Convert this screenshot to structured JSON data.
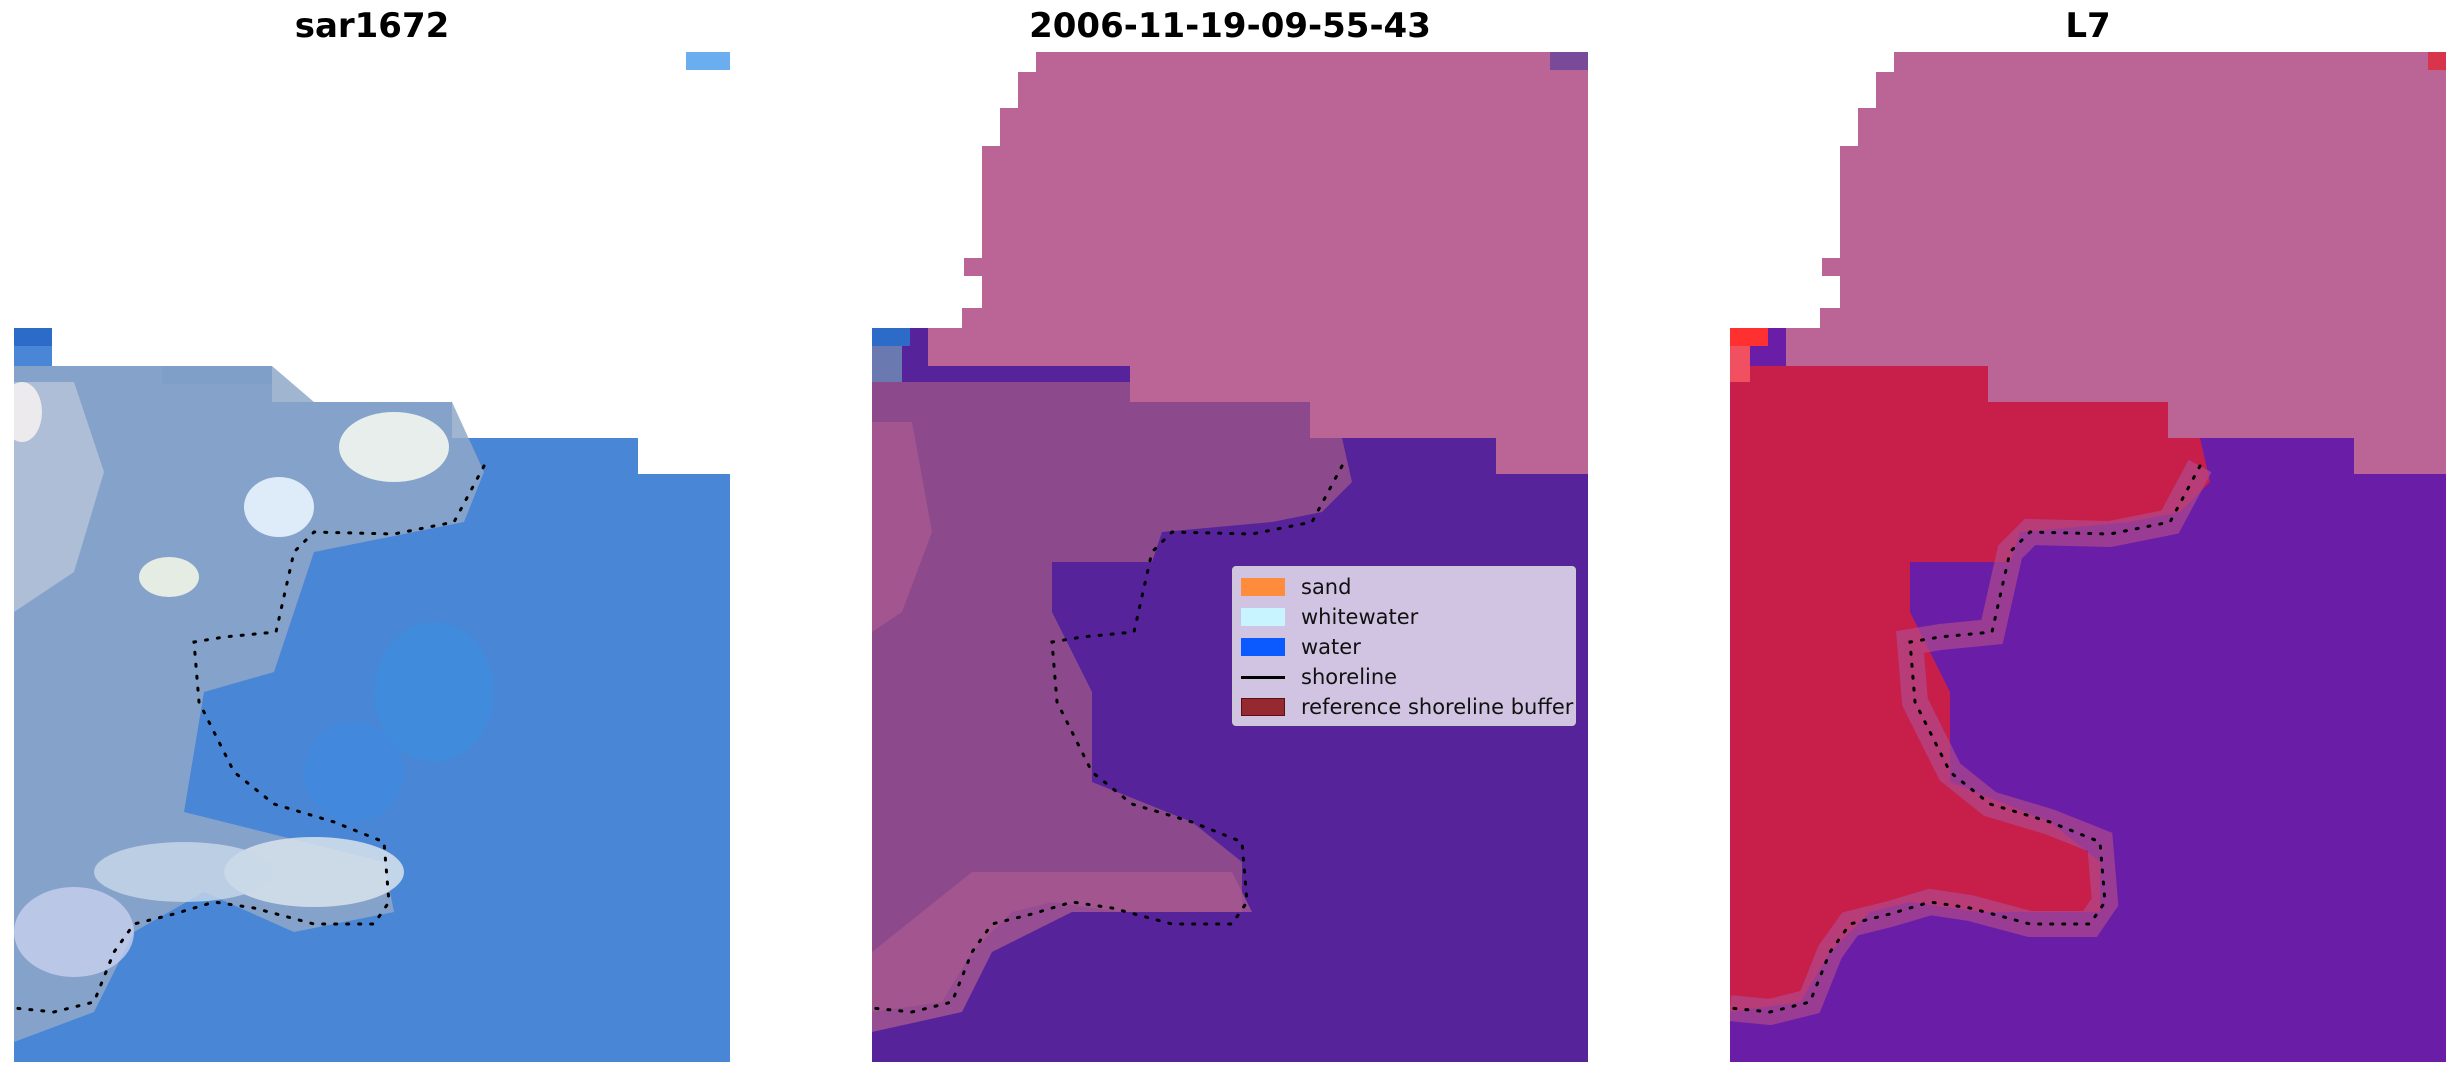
{
  "panels": [
    {
      "title": "sar1672"
    },
    {
      "title": "2006-11-19-09-55-43"
    },
    {
      "title": "L7"
    }
  ],
  "colors": {
    "sand": "#ff8c3c",
    "whitewater": "#c8f4ff",
    "water": "#0a5aff",
    "shoreline": "#000000",
    "buffer": "#962832",
    "rgb_water": "#4a86d6",
    "class_water": "#56239a",
    "class_land": "#8c4a8c",
    "nodata_mask": "#bb6596",
    "ndwi_land": "#c81e4a",
    "ndwi_water": "#6a1ea8"
  },
  "legend": {
    "items": [
      {
        "label": "sand",
        "kind": "patch",
        "color": "#ff8c3c"
      },
      {
        "label": "whitewater",
        "kind": "patch",
        "color": "#c8f4ff"
      },
      {
        "label": "water",
        "kind": "patch",
        "color": "#0a5aff"
      },
      {
        "label": "shoreline",
        "kind": "line",
        "color": "#000000"
      },
      {
        "label": "reference shoreline buffer",
        "kind": "patch",
        "color": "#962832"
      }
    ]
  }
}
